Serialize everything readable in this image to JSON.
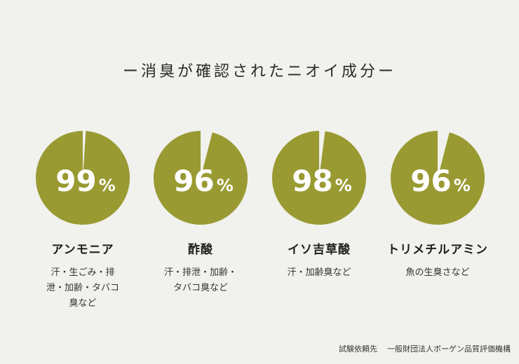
{
  "title": "ー消臭が確認されたニオイ成分ー",
  "chart_data": {
    "type": "pie",
    "accent_color": "#999a32",
    "remainder_color": "#f1f1ed",
    "items": [
      {
        "name": "アンモニア",
        "value": 99,
        "unit": "%",
        "desc": "汗・生ごみ・排泄・加齢・タバコ臭など"
      },
      {
        "name": "酢酸",
        "value": 96,
        "unit": "%",
        "desc": "汗・排泄・加齢・タバコ臭など"
      },
      {
        "name": "イソ吉草酸",
        "value": 98,
        "unit": "%",
        "desc": "汗・加齢臭など"
      },
      {
        "name": "トリメチルアミン",
        "value": 96,
        "unit": "%",
        "desc": "魚の生臭さなど"
      }
    ]
  },
  "footer": {
    "label": "試験依頼先",
    "org": "一般財団法人ボーゲン品質評価機構"
  }
}
